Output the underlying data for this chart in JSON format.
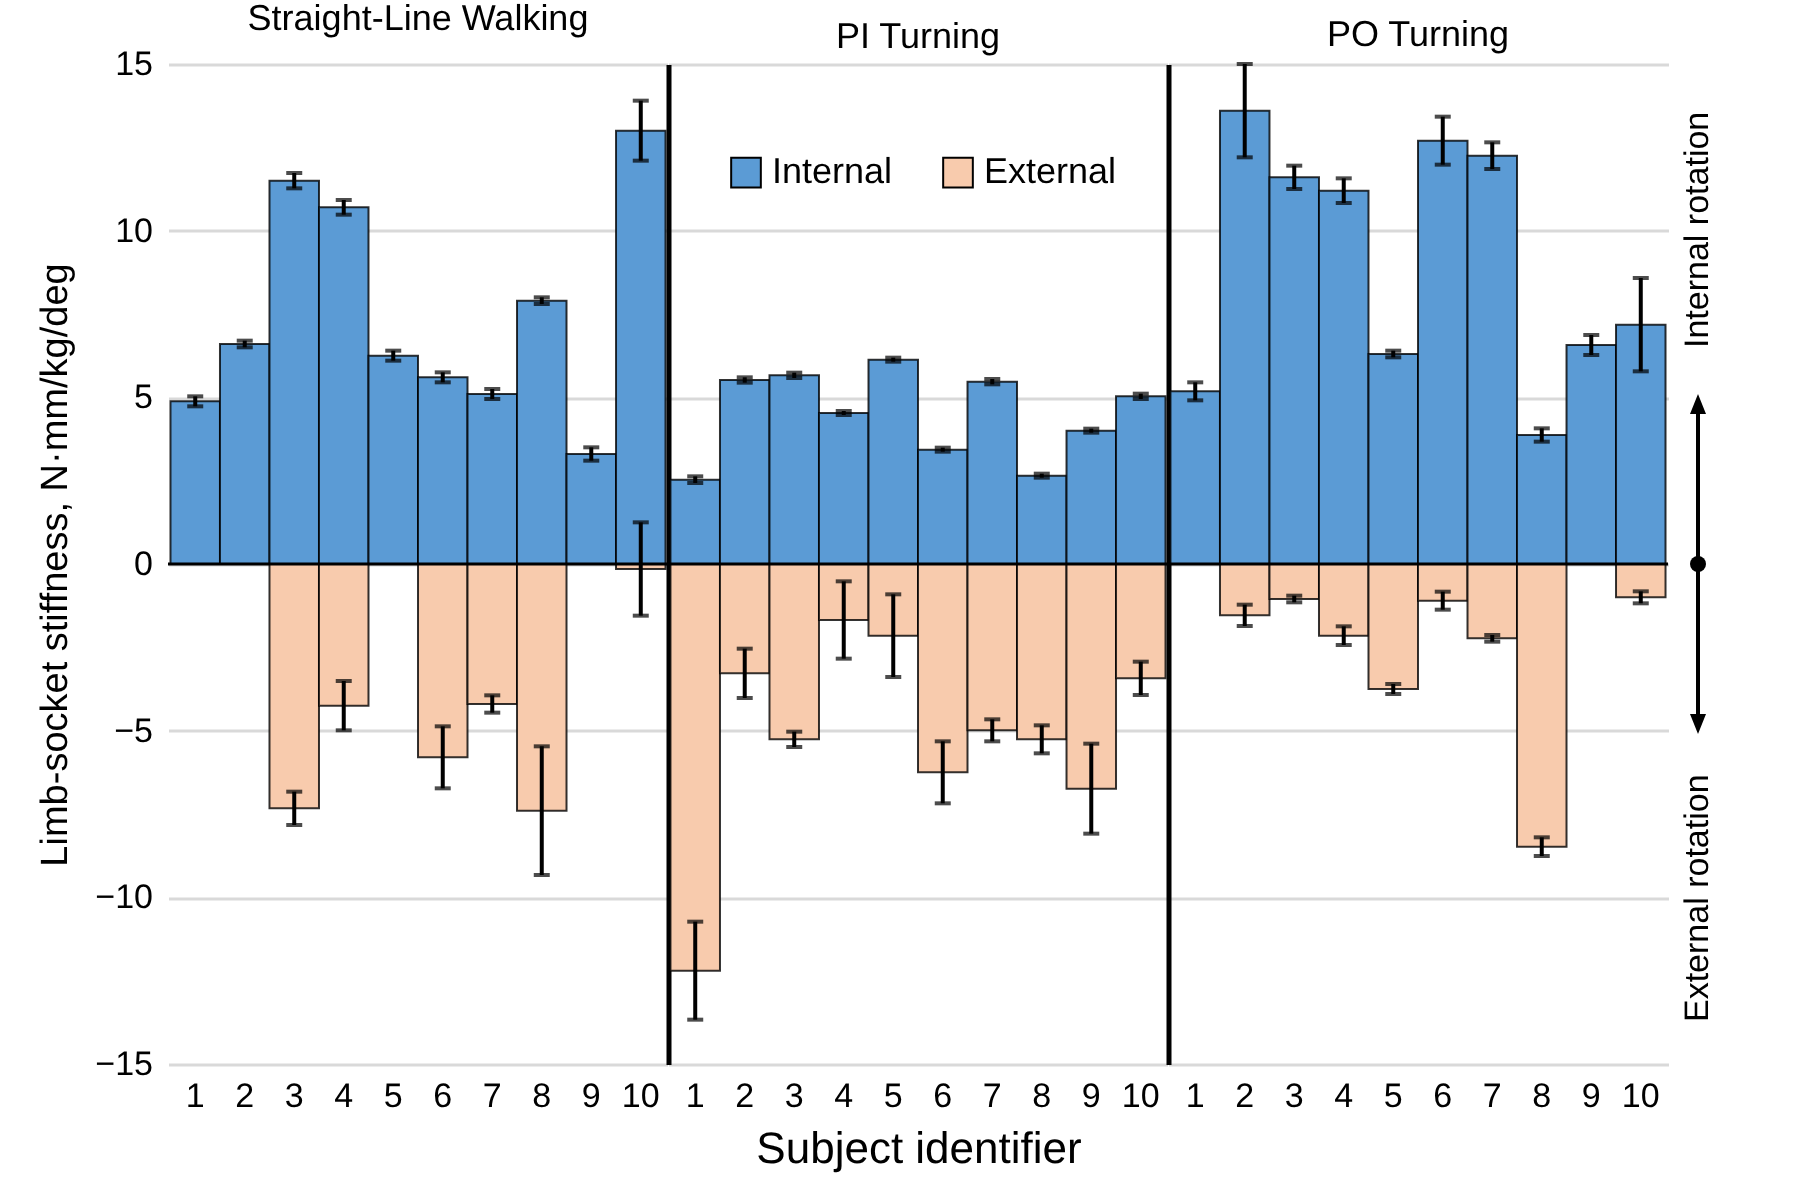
{
  "chart_data": [
    {
      "type": "bar",
      "title": "Straight-Line Walking",
      "ylabel": "Limb-socket stiffness, N·mm/kg/deg",
      "categories": [
        "1",
        "2",
        "3",
        "4",
        "5",
        "6",
        "7",
        "8",
        "9",
        "10"
      ],
      "stacked": true,
      "ylim": [
        -15,
        15
      ],
      "yticks": [
        -15,
        -10,
        -5,
        0,
        5,
        10,
        15
      ],
      "grid": "y",
      "legend": false,
      "series": [
        {
          "color": "#5b9bd5",
          "values": [
            4.88,
            6.6,
            11.5,
            10.7,
            6.25,
            5.6,
            5.1,
            7.9,
            3.3,
            13.0
          ],
          "errors": [
            0.15,
            0.1,
            0.23,
            0.22,
            0.15,
            0.15,
            0.15,
            0.1,
            0.2,
            0.9
          ]
        },
        {
          "color": "#f8cbad",
          "values": [
            null,
            null,
            -7.33,
            -4.25,
            null,
            -5.8,
            -4.2,
            -7.4,
            null,
            -0.15
          ],
          "errors": [
            null,
            null,
            0.5,
            0.74,
            null,
            0.93,
            0.26,
            1.93,
            null,
            1.4
          ]
        }
      ]
    },
    {
      "type": "bar",
      "title": "PI Turning",
      "xlabel": "Subject identifier",
      "categories": [
        "1",
        "2",
        "3",
        "4",
        "5",
        "6",
        "7",
        "8",
        "9",
        "10"
      ],
      "stacked": true,
      "ylim": [
        -15,
        15
      ],
      "yticks": [
        -15,
        -10,
        -5,
        0,
        5,
        10,
        15
      ],
      "grid": "y",
      "legend": "top",
      "tick_labels": "x",
      "series": [
        {
          "name": "Internal",
          "color": "#5b9bd5",
          "values": [
            2.53,
            5.52,
            5.66,
            4.53,
            6.13,
            3.43,
            5.47,
            2.65,
            4.0,
            5.03
          ],
          "errors": [
            0.1,
            0.08,
            0.08,
            0.06,
            0.06,
            0.06,
            0.08,
            0.06,
            0.06,
            0.08
          ]
        },
        {
          "name": "External",
          "color": "#f8cbad",
          "values": [
            -12.2,
            -3.28,
            -5.26,
            -1.68,
            -2.15,
            -6.25,
            -4.99,
            -5.26,
            -6.74,
            -3.43
          ],
          "errors": [
            1.47,
            0.74,
            0.23,
            1.16,
            1.24,
            0.93,
            0.33,
            0.42,
            1.35,
            0.5
          ]
        }
      ]
    },
    {
      "type": "bar",
      "title": "PO Turning",
      "categories": [
        "1",
        "2",
        "3",
        "4",
        "5",
        "6",
        "7",
        "8",
        "9",
        "10"
      ],
      "stacked": true,
      "ylim": [
        -15,
        15
      ],
      "yticks": [
        -15,
        -10,
        -5,
        0,
        5,
        10,
        15
      ],
      "grid": "y",
      "legend": false,
      "tick_labels": "x",
      "annotations": [
        "Internal rotation",
        "External rotation"
      ],
      "series": [
        {
          "color": "#5b9bd5",
          "values": [
            5.18,
            13.6,
            11.6,
            11.2,
            6.3,
            12.7,
            12.25,
            3.87,
            6.57,
            7.18
          ],
          "errors": [
            0.27,
            1.4,
            0.35,
            0.37,
            0.1,
            0.72,
            0.4,
            0.2,
            0.3,
            1.4
          ]
        },
        {
          "color": "#f8cbad",
          "values": [
            null,
            -1.54,
            -1.05,
            -2.15,
            -3.75,
            -1.1,
            -2.23,
            -8.48,
            null,
            -1.0
          ],
          "errors": [
            null,
            0.32,
            0.1,
            0.28,
            0.15,
            0.27,
            0.1,
            0.28,
            null,
            0.18
          ]
        }
      ]
    }
  ]
}
